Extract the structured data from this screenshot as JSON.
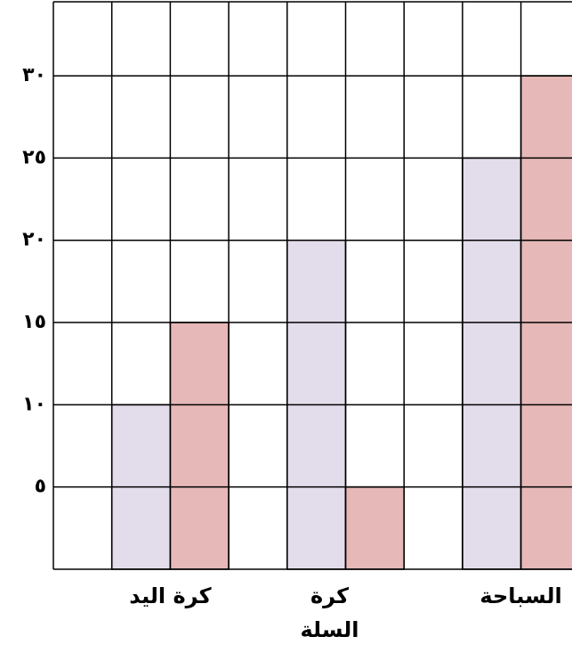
{
  "chart_data": {
    "type": "bar",
    "categories": [
      "كرة اليد",
      "كرة السلة",
      "السباحة"
    ],
    "series": [
      {
        "color": "#e3dcea",
        "values": [
          10,
          20,
          25
        ]
      },
      {
        "color": "#e6b8b7",
        "values": [
          15,
          5,
          30
        ]
      }
    ],
    "ylim": [
      0,
      34.5
    ],
    "yticks": [
      {
        "value": 5,
        "label": "٥"
      },
      {
        "value": 10,
        "label": "١٠"
      },
      {
        "value": 15,
        "label": "١٥"
      },
      {
        "value": 20,
        "label": "٢٠"
      },
      {
        "value": 25,
        "label": "٢٥"
      },
      {
        "value": 30,
        "label": "٣٠"
      }
    ],
    "grid": true
  }
}
